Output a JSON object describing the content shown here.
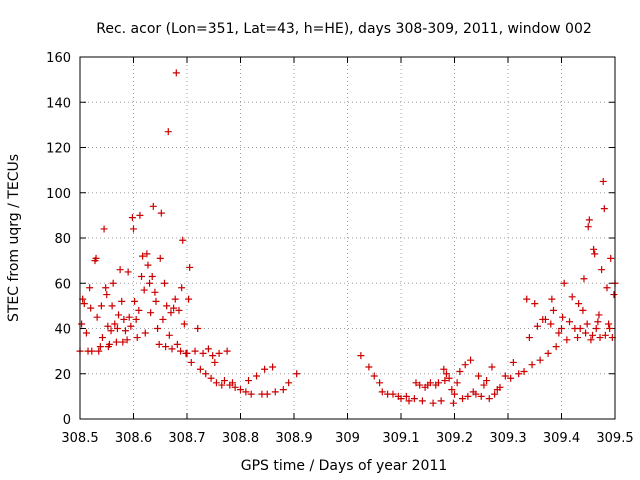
{
  "chart_data": {
    "type": "scatter",
    "title": "Rec. acor (Lon=351, Lat=43, h=HE), days 308-309, 2011, window 002",
    "xlabel": "GPS time / Days of year 2011",
    "ylabel": "STEC from uqrg / TECUs",
    "xlim": [
      308.5,
      309.5
    ],
    "ylim": [
      0,
      160
    ],
    "xticks": [
      "308.5",
      "308.6",
      "308.7",
      "308.8",
      "308.9",
      "309",
      "309.1",
      "309.2",
      "309.3",
      "309.4",
      "309.5"
    ],
    "yticks": [
      "0",
      "20",
      "40",
      "60",
      "80",
      "100",
      "120",
      "140",
      "160"
    ],
    "marker": "+",
    "color": "#cc0000",
    "series": [
      {
        "name": "STEC",
        "points": [
          [
            308.5,
            30
          ],
          [
            308.503,
            42
          ],
          [
            308.505,
            53
          ],
          [
            308.508,
            51
          ],
          [
            308.512,
            38
          ],
          [
            308.515,
            30
          ],
          [
            308.518,
            58
          ],
          [
            308.52,
            49
          ],
          [
            308.522,
            30
          ],
          [
            308.528,
            70
          ],
          [
            308.53,
            71
          ],
          [
            308.532,
            45
          ],
          [
            308.535,
            30
          ],
          [
            308.538,
            32
          ],
          [
            308.54,
            50
          ],
          [
            308.542,
            36
          ],
          [
            308.545,
            84
          ],
          [
            308.548,
            58
          ],
          [
            308.55,
            55
          ],
          [
            308.552,
            41
          ],
          [
            308.553,
            32
          ],
          [
            308.555,
            33
          ],
          [
            308.558,
            39
          ],
          [
            308.56,
            50
          ],
          [
            308.562,
            60
          ],
          [
            308.565,
            42
          ],
          [
            308.568,
            34
          ],
          [
            308.57,
            40
          ],
          [
            308.572,
            46
          ],
          [
            308.575,
            66
          ],
          [
            308.578,
            52
          ],
          [
            308.58,
            34
          ],
          [
            308.582,
            44
          ],
          [
            308.585,
            39
          ],
          [
            308.588,
            35
          ],
          [
            308.59,
            65
          ],
          [
            308.592,
            45
          ],
          [
            308.595,
            41
          ],
          [
            308.598,
            89
          ],
          [
            308.6,
            84
          ],
          [
            308.602,
            52
          ],
          [
            308.605,
            44
          ],
          [
            308.607,
            36
          ],
          [
            308.61,
            48
          ],
          [
            308.612,
            90
          ],
          [
            308.615,
            63
          ],
          [
            308.617,
            72
          ],
          [
            308.62,
            57
          ],
          [
            308.622,
            38
          ],
          [
            308.625,
            73
          ],
          [
            308.627,
            68
          ],
          [
            308.63,
            60
          ],
          [
            308.632,
            47
          ],
          [
            308.635,
            63
          ],
          [
            308.637,
            94
          ],
          [
            308.64,
            56
          ],
          [
            308.642,
            52
          ],
          [
            308.645,
            40
          ],
          [
            308.648,
            33
          ],
          [
            308.65,
            71
          ],
          [
            308.652,
            91
          ],
          [
            308.655,
            44
          ],
          [
            308.658,
            60
          ],
          [
            308.66,
            32
          ],
          [
            308.662,
            50
          ],
          [
            308.665,
            127
          ],
          [
            308.667,
            37
          ],
          [
            308.67,
            47
          ],
          [
            308.672,
            31
          ],
          [
            308.675,
            49
          ],
          [
            308.678,
            53
          ],
          [
            308.68,
            153
          ],
          [
            308.682,
            33
          ],
          [
            308.685,
            48
          ],
          [
            308.688,
            30
          ],
          [
            308.69,
            58
          ],
          [
            308.692,
            79
          ],
          [
            308.695,
            42
          ],
          [
            308.698,
            29
          ],
          [
            308.7,
            29
          ],
          [
            308.703,
            53
          ],
          [
            308.705,
            67
          ],
          [
            308.708,
            25
          ],
          [
            308.715,
            30
          ],
          [
            308.72,
            40
          ],
          [
            308.725,
            22
          ],
          [
            308.73,
            29
          ],
          [
            308.735,
            20
          ],
          [
            308.74,
            31
          ],
          [
            308.745,
            18
          ],
          [
            308.748,
            28
          ],
          [
            308.752,
            25
          ],
          [
            308.755,
            16
          ],
          [
            308.76,
            29
          ],
          [
            308.765,
            15
          ],
          [
            308.77,
            17
          ],
          [
            308.775,
            30
          ],
          [
            308.78,
            15
          ],
          [
            308.785,
            16
          ],
          [
            308.79,
            14
          ],
          [
            308.8,
            13
          ],
          [
            308.81,
            12
          ],
          [
            308.815,
            17
          ],
          [
            308.82,
            11
          ],
          [
            308.83,
            19
          ],
          [
            308.84,
            11
          ],
          [
            308.845,
            22
          ],
          [
            308.85,
            11
          ],
          [
            308.86,
            23
          ],
          [
            308.865,
            12
          ],
          [
            308.88,
            13
          ],
          [
            308.89,
            16
          ],
          [
            308.905,
            20
          ],
          [
            309.025,
            28
          ],
          [
            309.04,
            23
          ],
          [
            309.05,
            19
          ],
          [
            309.06,
            16
          ],
          [
            309.065,
            12
          ],
          [
            309.075,
            11
          ],
          [
            309.085,
            11
          ],
          [
            309.095,
            10
          ],
          [
            309.1,
            9
          ],
          [
            309.11,
            10
          ],
          [
            309.115,
            8
          ],
          [
            309.125,
            9
          ],
          [
            309.128,
            16
          ],
          [
            309.135,
            15
          ],
          [
            309.14,
            8
          ],
          [
            309.145,
            14
          ],
          [
            309.15,
            15
          ],
          [
            309.155,
            16
          ],
          [
            309.16,
            7
          ],
          [
            309.165,
            15
          ],
          [
            309.17,
            16
          ],
          [
            309.175,
            8
          ],
          [
            309.18,
            22
          ],
          [
            309.182,
            17
          ],
          [
            309.185,
            20
          ],
          [
            309.19,
            18
          ],
          [
            309.195,
            13
          ],
          [
            309.198,
            7
          ],
          [
            309.2,
            11
          ],
          [
            309.205,
            16
          ],
          [
            309.21,
            21
          ],
          [
            309.215,
            9
          ],
          [
            309.22,
            24
          ],
          [
            309.225,
            10
          ],
          [
            309.23,
            26
          ],
          [
            309.235,
            12
          ],
          [
            309.24,
            11
          ],
          [
            309.245,
            19
          ],
          [
            309.25,
            10
          ],
          [
            309.255,
            15
          ],
          [
            309.26,
            17
          ],
          [
            309.265,
            9
          ],
          [
            309.27,
            23
          ],
          [
            309.275,
            11
          ],
          [
            309.28,
            13
          ],
          [
            309.285,
            14
          ],
          [
            309.295,
            19
          ],
          [
            309.305,
            18
          ],
          [
            309.31,
            25
          ],
          [
            309.32,
            20
          ],
          [
            309.33,
            21
          ],
          [
            309.335,
            53
          ],
          [
            309.34,
            36
          ],
          [
            309.345,
            24
          ],
          [
            309.35,
            51
          ],
          [
            309.355,
            41
          ],
          [
            309.36,
            26
          ],
          [
            309.365,
            44
          ],
          [
            309.37,
            44
          ],
          [
            309.375,
            29
          ],
          [
            309.38,
            42
          ],
          [
            309.382,
            53
          ],
          [
            309.385,
            48
          ],
          [
            309.39,
            32
          ],
          [
            309.395,
            38
          ],
          [
            309.4,
            40
          ],
          [
            309.402,
            45
          ],
          [
            309.405,
            60
          ],
          [
            309.41,
            35
          ],
          [
            309.415,
            43
          ],
          [
            309.42,
            54
          ],
          [
            309.425,
            40
          ],
          [
            309.43,
            36
          ],
          [
            309.432,
            51
          ],
          [
            309.435,
            40
          ],
          [
            309.44,
            48
          ],
          [
            309.442,
            62
          ],
          [
            309.445,
            38
          ],
          [
            309.448,
            42
          ],
          [
            309.45,
            85
          ],
          [
            309.452,
            88
          ],
          [
            309.455,
            35
          ],
          [
            309.458,
            37
          ],
          [
            309.46,
            75
          ],
          [
            309.462,
            73
          ],
          [
            309.465,
            40
          ],
          [
            309.468,
            43
          ],
          [
            309.47,
            46
          ],
          [
            309.472,
            36
          ],
          [
            309.475,
            66
          ],
          [
            309.478,
            105
          ],
          [
            309.48,
            93
          ],
          [
            309.482,
            37
          ],
          [
            309.485,
            58
          ],
          [
            309.488,
            42
          ],
          [
            309.49,
            40
          ],
          [
            309.492,
            71
          ],
          [
            309.495,
            36
          ],
          [
            309.498,
            55
          ],
          [
            309.5,
            60
          ]
        ]
      }
    ]
  }
}
